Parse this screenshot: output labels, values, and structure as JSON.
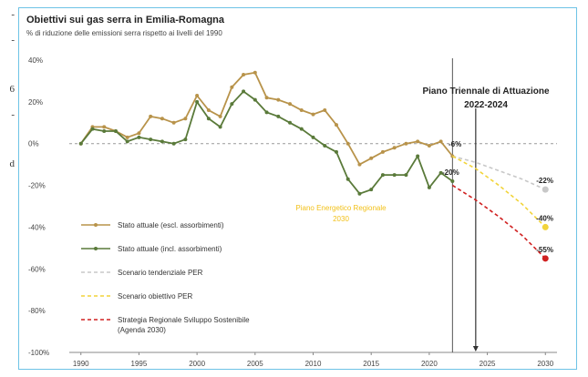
{
  "page_fragments": [
    "-",
    "-",
    "6",
    "-",
    "d"
  ],
  "chart_data": {
    "type": "line",
    "title": "Obiettivi sui gas serra in Emilia-Romagna",
    "subtitle": "% di riduzione delle emissioni serra rispetto ai livelli del 1990",
    "x_ticks": [
      1990,
      1995,
      2000,
      2005,
      2010,
      2015,
      2020,
      2025,
      2030
    ],
    "y_ticks": [
      40,
      20,
      0,
      -20,
      -40,
      -60,
      -80,
      -100
    ],
    "y_tick_labels": [
      "40%",
      "20%",
      "0%",
      "-20%",
      "-40%",
      "-60%",
      "-80%",
      "-100%"
    ],
    "ylim": [
      -100,
      40
    ],
    "xlim": [
      1989,
      2031
    ],
    "grid": false,
    "legend_position": "left",
    "colors": {
      "excl": "#b8934a",
      "incl": "#5a7a3a",
      "tendenziale": "#c8c8c8",
      "obiettivo": "#f2d43a",
      "strategia": "#d02020",
      "frame": "#6ec3e6"
    },
    "series": [
      {
        "name": "Stato attuale (escl. assorbimenti)",
        "style": "solid-markers",
        "x": [
          1990,
          1991,
          1992,
          1993,
          1994,
          1995,
          1996,
          1997,
          1998,
          1999,
          2000,
          2001,
          2002,
          2003,
          2004,
          2005,
          2006,
          2007,
          2008,
          2009,
          2010,
          2011,
          2012,
          2013,
          2014,
          2015,
          2016,
          2017,
          2018,
          2019,
          2020,
          2021,
          2022
        ],
        "values": [
          0,
          8,
          8,
          6,
          3,
          5,
          13,
          12,
          10,
          12,
          23,
          16,
          13,
          27,
          33,
          34,
          22,
          21,
          19,
          16,
          14,
          16,
          9,
          0,
          -10,
          -7,
          -4,
          -2,
          0,
          1,
          -1,
          1,
          -6
        ]
      },
      {
        "name": "Stato attuale (incl. assorbimenti)",
        "style": "solid-markers",
        "x": [
          1990,
          1991,
          1992,
          1993,
          1994,
          1995,
          1996,
          1997,
          1998,
          1999,
          2000,
          2001,
          2002,
          2003,
          2004,
          2005,
          2006,
          2007,
          2008,
          2009,
          2010,
          2011,
          2012,
          2013,
          2014,
          2015,
          2016,
          2017,
          2018,
          2019,
          2020,
          2021,
          2022
        ],
        "values": [
          0,
          7,
          6,
          6,
          1,
          3,
          2,
          1,
          0,
          2,
          20,
          12,
          8,
          19,
          25,
          21,
          15,
          13,
          10,
          7,
          3,
          -1,
          -4,
          -17,
          -24,
          -22,
          -15,
          -15,
          -15,
          -6,
          -21,
          -14,
          -18
        ]
      },
      {
        "name": "Scenario tendenziale PER",
        "style": "dashed",
        "x": [
          2022,
          2024,
          2026,
          2028,
          2030
        ],
        "values": [
          -6,
          -9,
          -13,
          -17,
          -22
        ]
      },
      {
        "name": "Scenario obiettivo PER",
        "style": "dashed",
        "x": [
          2022,
          2024,
          2026,
          2028,
          2030
        ],
        "values": [
          -6,
          -12,
          -20,
          -29,
          -40
        ]
      },
      {
        "name": "Strategia Regionale Sviluppo Sostenibile (Agenda 2030)",
        "style": "dashed",
        "x": [
          2022,
          2024,
          2026,
          2028,
          2030
        ],
        "values": [
          -20,
          -27,
          -35,
          -44,
          -55
        ]
      }
    ],
    "endpoints": [
      {
        "x": 2030,
        "y": -22,
        "label": "-22%"
      },
      {
        "x": 2030,
        "y": -40,
        "label": "-40%"
      },
      {
        "x": 2030,
        "y": -55,
        "label": "-55%"
      }
    ],
    "annotations": {
      "plan_title": "Piano Triennale di Attuazione",
      "plan_years": "2022-2024",
      "plan_x_start": 2022,
      "plan_x_end": 2024,
      "label_6": "-6%",
      "label_20": "-20%",
      "energy_plan_line1": "Piano Energetico Regionale",
      "energy_plan_line2": "2030"
    }
  }
}
